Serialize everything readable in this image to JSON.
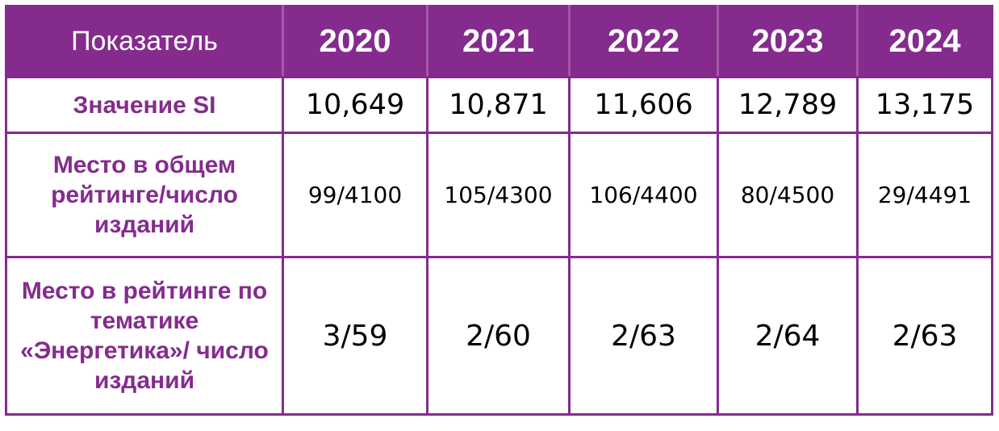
{
  "table": {
    "header": {
      "label": "Показатель",
      "years": [
        "2020",
        "2021",
        "2022",
        "2023",
        "2024"
      ]
    },
    "rows": [
      {
        "label": "Значение SI",
        "values": [
          "10,649",
          "10,871",
          "11,606",
          "12,789",
          "13,175"
        ]
      },
      {
        "label": "Место в общем рейтинге/число изданий",
        "values": [
          "99/4100",
          "105/4300",
          "106/4400",
          "80/4500",
          "29/4491"
        ]
      },
      {
        "label": "Место в рейтинге по тематике «Энергетика»/ число изданий",
        "values": [
          "3/59",
          "2/60",
          "2/63",
          "2/64",
          "2/63"
        ]
      }
    ]
  },
  "colors": {
    "accent": "#852b8e",
    "header_text": "#ffffff",
    "value_text": "#000000"
  }
}
